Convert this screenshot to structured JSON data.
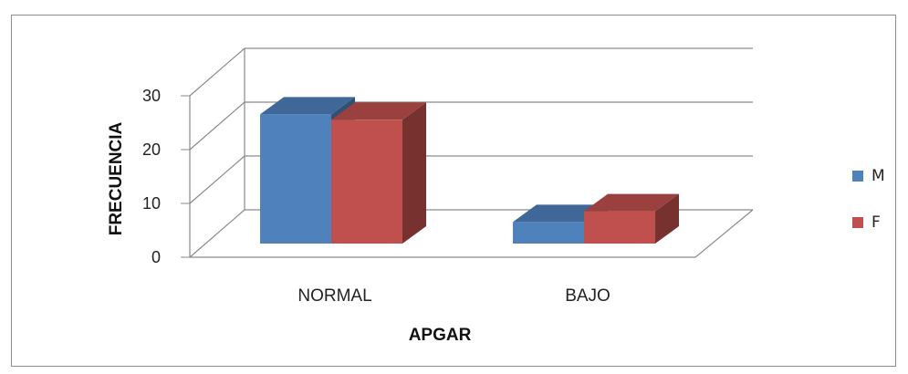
{
  "chart_data": {
    "type": "bar",
    "title": "",
    "xlabel": "APGAR",
    "ylabel": "FRECUENCIA",
    "categories": [
      "NORMAL",
      "BAJO"
    ],
    "series": [
      {
        "name": "M",
        "values": [
          24,
          4
        ],
        "color": "#4F81BD"
      },
      {
        "name": "F",
        "values": [
          23,
          6
        ],
        "color": "#C0504D"
      }
    ],
    "yticks": [
      "0",
      "10",
      "20",
      "30"
    ],
    "ylim": [
      0,
      30
    ],
    "grid": true,
    "legend_position": "right",
    "style": "3d-clustered"
  }
}
